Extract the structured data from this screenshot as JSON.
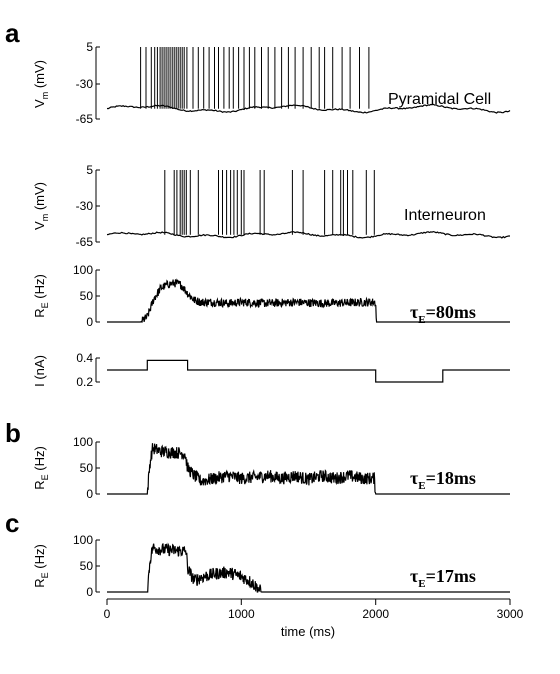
{
  "figure": {
    "panel_letters": [
      "a",
      "b",
      "c"
    ],
    "cell_labels": {
      "pyramidal": "Pyramidal Cell",
      "interneuron": "Interneuron"
    },
    "tau_symbol": "τ",
    "tau_subscript": "E",
    "tau_values": [
      "=80ms",
      "=18ms",
      "=17ms"
    ],
    "vm_ylabel_main": "V",
    "vm_ylabel_sub": "m",
    "vm_ylabel_unit": " (mV)",
    "re_ylabel_main": "R",
    "re_ylabel_sub": "E",
    "re_ylabel_unit": " (Hz)",
    "i_ylabel": "I (nA)",
    "xlabel": "time (ms)"
  },
  "chart_data": [
    {
      "type": "line",
      "panel": "a",
      "name": "Pyramidal Cell",
      "ylabel": "Vm (mV)",
      "yticks": [
        "5",
        "-30",
        "-65"
      ],
      "ylim": [
        -65,
        5
      ],
      "xlim": [
        0,
        3000
      ],
      "baseline_mV": -55,
      "spike_peak_mV": 5,
      "spike_times_ms": [
        250,
        290,
        330,
        355,
        375,
        395,
        410,
        425,
        440,
        455,
        470,
        485,
        500,
        515,
        530,
        545,
        560,
        575,
        595,
        640,
        680,
        720,
        760,
        800,
        830,
        870,
        910,
        940,
        980,
        1020,
        1060,
        1100,
        1150,
        1200,
        1250,
        1300,
        1350,
        1400,
        1460,
        1520,
        1580,
        1620,
        1680,
        1750,
        1810,
        1880,
        1950
      ]
    },
    {
      "type": "line",
      "panel": "a",
      "name": "Interneuron",
      "ylabel": "Vm (mV)",
      "yticks": [
        "5",
        "-30",
        "-65"
      ],
      "ylim": [
        -65,
        5
      ],
      "xlim": [
        0,
        3000
      ],
      "baseline_mV": -58,
      "spike_peak_mV": 5,
      "spike_times_ms": [
        430,
        500,
        520,
        545,
        560,
        575,
        590,
        620,
        680,
        830,
        860,
        890,
        920,
        945,
        970,
        1000,
        1020,
        1140,
        1170,
        1380,
        1460,
        1620,
        1680,
        1740,
        1760,
        1790,
        1830,
        1930,
        1990
      ]
    },
    {
      "type": "line",
      "panel": "a",
      "name": "RE tau 80ms",
      "ylabel": "RE (Hz)",
      "yticks": [
        "100",
        "50",
        "0"
      ],
      "ylim": [
        0,
        100
      ],
      "xlim": [
        0,
        3000
      ],
      "points": [
        [
          0,
          0
        ],
        [
          250,
          0
        ],
        [
          300,
          10
        ],
        [
          350,
          45
        ],
        [
          400,
          65
        ],
        [
          450,
          72
        ],
        [
          500,
          75
        ],
        [
          550,
          72
        ],
        [
          600,
          55
        ],
        [
          650,
          42
        ],
        [
          700,
          38
        ],
        [
          800,
          38
        ],
        [
          900,
          36
        ],
        [
          1000,
          38
        ],
        [
          1200,
          36
        ],
        [
          1400,
          38
        ],
        [
          1600,
          36
        ],
        [
          1800,
          37
        ],
        [
          1950,
          38
        ],
        [
          2000,
          38
        ],
        [
          2005,
          0
        ],
        [
          3000,
          0
        ]
      ],
      "noise_amplitude": 8
    },
    {
      "type": "line",
      "panel": "a",
      "name": "I",
      "ylabel": "I (nA)",
      "yticks": [
        "0.4",
        "0.2"
      ],
      "ylim": [
        0.2,
        0.4
      ],
      "xlim": [
        0,
        3000
      ],
      "points": [
        [
          0,
          0.3
        ],
        [
          300,
          0.3
        ],
        [
          300,
          0.38
        ],
        [
          600,
          0.38
        ],
        [
          600,
          0.3
        ],
        [
          2000,
          0.3
        ],
        [
          2000,
          0.2
        ],
        [
          2500,
          0.2
        ],
        [
          2500,
          0.3
        ],
        [
          3000,
          0.3
        ]
      ]
    },
    {
      "type": "line",
      "panel": "b",
      "name": "RE tau 18ms",
      "ylabel": "RE (Hz)",
      "yticks": [
        "100",
        "50",
        "0"
      ],
      "ylim": [
        0,
        100
      ],
      "xlim": [
        0,
        3000
      ],
      "points": [
        [
          0,
          0
        ],
        [
          250,
          0
        ],
        [
          300,
          0
        ],
        [
          320,
          60
        ],
        [
          340,
          88
        ],
        [
          400,
          82
        ],
        [
          500,
          80
        ],
        [
          580,
          78
        ],
        [
          600,
          50
        ],
        [
          650,
          35
        ],
        [
          700,
          25
        ],
        [
          800,
          30
        ],
        [
          900,
          35
        ],
        [
          1000,
          30
        ],
        [
          1100,
          32
        ],
        [
          1200,
          35
        ],
        [
          1300,
          30
        ],
        [
          1400,
          35
        ],
        [
          1500,
          28
        ],
        [
          1600,
          35
        ],
        [
          1700,
          30
        ],
        [
          1800,
          35
        ],
        [
          1900,
          30
        ],
        [
          1990,
          30
        ],
        [
          2000,
          0
        ],
        [
          3000,
          0
        ]
      ],
      "noise_amplitude": 12
    },
    {
      "type": "line",
      "panel": "c",
      "name": "RE tau 17ms",
      "ylabel": "RE (Hz)",
      "yticks": [
        "100",
        "50",
        "0"
      ],
      "ylim": [
        0,
        100
      ],
      "xlim": [
        0,
        3000
      ],
      "xticks": [
        "0",
        "1000",
        "2000",
        "3000"
      ],
      "xlabel": "time (ms)",
      "points": [
        [
          0,
          0
        ],
        [
          250,
          0
        ],
        [
          300,
          0
        ],
        [
          320,
          60
        ],
        [
          340,
          85
        ],
        [
          400,
          82
        ],
        [
          500,
          80
        ],
        [
          590,
          78
        ],
        [
          600,
          45
        ],
        [
          650,
          22
        ],
        [
          700,
          28
        ],
        [
          800,
          35
        ],
        [
          900,
          38
        ],
        [
          1000,
          30
        ],
        [
          1080,
          18
        ],
        [
          1120,
          8
        ],
        [
          1150,
          0
        ],
        [
          3000,
          0
        ]
      ],
      "noise_amplitude": 12
    }
  ]
}
